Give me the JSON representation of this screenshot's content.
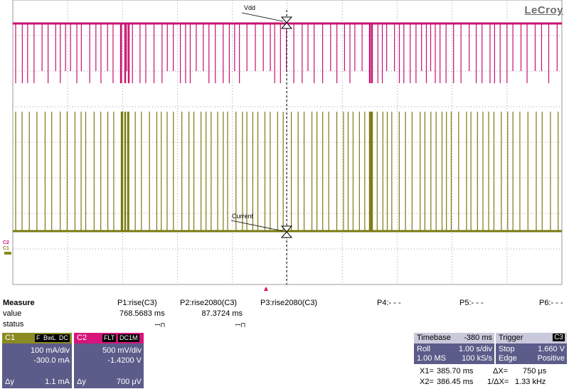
{
  "brand": {
    "logo": "LeCroy"
  },
  "traces": {
    "vdd": {
      "label": "Vdd",
      "color": "#c8106e"
    },
    "current": {
      "label": "Current",
      "color": "#7a7a12"
    }
  },
  "channel_markers": {
    "c2": "C2",
    "c1": "C1"
  },
  "measure": {
    "title": "Measure",
    "row_value": "value",
    "row_status": "status",
    "p1": {
      "label": "P1:rise(C3)",
      "value": "768.5683 ms",
      "status": "ꟷ⊓"
    },
    "p2": {
      "label": "P2:rise2080(C3)",
      "value": "87.3724 ms",
      "status": "ꟷ⊓"
    },
    "p3": {
      "label": "P3:rise2080(C3)"
    },
    "p4": {
      "label": "P4:- - -"
    },
    "p5": {
      "label": "P5:- - -"
    },
    "p6": {
      "label": "P6:- - -"
    }
  },
  "c1": {
    "name": "C1",
    "tags": [
      "F",
      "BwL",
      "DC"
    ],
    "scale": "100 mA/div",
    "offset": "-300.0 mA",
    "delta_label": "Δy",
    "delta": "1.1 mA",
    "color": "#8b8b23"
  },
  "c2": {
    "name": "C2",
    "tags": [
      "FLT",
      "DC1M"
    ],
    "scale": "500 mV/div",
    "offset": "-1.4200 V",
    "delta_label": "Δy",
    "delta": "700 μV",
    "color": "#d6157a"
  },
  "timebase": {
    "title": "Timebase",
    "value": "-380 ms",
    "mode": "Roll",
    "time_div": "1.00 s/div",
    "samples": "1.00 MS",
    "rate": "100 kS/s"
  },
  "trigger": {
    "title": "Trigger",
    "channel": "C3",
    "mode": "Stop",
    "level": "1.660 V",
    "type": "Edge",
    "slope": "Positive"
  },
  "cursors": {
    "x1_label": "X1=",
    "x1": "385.70 ms",
    "dx_label": "ΔX=",
    "dx": "750 μs",
    "x2_label": "X2=",
    "x2": "386.45 ms",
    "inv_label": "1/ΔX=",
    "inv": "1.33 kHz"
  }
}
